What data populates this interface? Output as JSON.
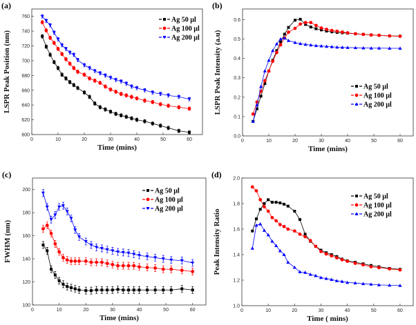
{
  "colors": {
    "s50": "#000000",
    "s100": "#ff0000",
    "s200": "#0000ff"
  },
  "chart_data": [
    {
      "panel": "(a)",
      "type": "line",
      "xlabel": "Time (mins)",
      "ylabel": "LSPR Peak Position (nm)",
      "xlim": [
        0,
        65
      ],
      "ylim": [
        600,
        770
      ],
      "xticks": [
        0,
        10,
        20,
        30,
        40,
        50,
        60
      ],
      "yticks": [
        600,
        620,
        640,
        660,
        680,
        700,
        720,
        740,
        760
      ],
      "legend": "top-right",
      "error_bars": true,
      "x": [
        4,
        5.5,
        7,
        8.5,
        10,
        11.5,
        13,
        14.5,
        16,
        17.5,
        20,
        22,
        24,
        26,
        28,
        30,
        32,
        34,
        36,
        38,
        40,
        43,
        46,
        49,
        52,
        56,
        60
      ],
      "series": [
        {
          "name": "Ag  50 µl",
          "marker": "square",
          "values": [
            733,
            719,
            708,
            698,
            690,
            681,
            676,
            671,
            667,
            663,
            657,
            651,
            642,
            637,
            634,
            631,
            628,
            626,
            624,
            622,
            620,
            618,
            615,
            612,
            609,
            605,
            603
          ]
        },
        {
          "name": "Ag 100 µl",
          "marker": "circle",
          "values": [
            752,
            741,
            731,
            724,
            716,
            709,
            702,
            696,
            690,
            685,
            681,
            676,
            673,
            670,
            665,
            661,
            658,
            655,
            653,
            651,
            649,
            646,
            644,
            641,
            639,
            637,
            635
          ]
        },
        {
          "name": "Ag 200 µl",
          "marker": "triangle-down",
          "values": [
            760,
            754,
            748,
            738,
            729,
            721,
            716,
            711,
            708,
            701,
            694,
            690,
            686,
            683,
            680,
            677,
            674,
            672,
            669,
            665,
            663,
            660,
            657,
            655,
            653,
            651,
            648
          ]
        }
      ]
    },
    {
      "panel": "(b)",
      "type": "line",
      "xlabel": "Time (mins)",
      "ylabel": "LSPR Peak Intensity (a.u)",
      "xlim": [
        0,
        65
      ],
      "ylim": [
        0,
        0.655
      ],
      "xticks": [
        0,
        10,
        20,
        30,
        40,
        50,
        60
      ],
      "yticks": [
        0.0,
        0.1,
        0.2,
        0.3,
        0.4,
        0.5,
        0.6
      ],
      "legend": "center-right",
      "error_bars": false,
      "x": [
        4,
        5.5,
        7,
        8.5,
        10,
        11.5,
        13,
        14.5,
        16,
        17.5,
        20,
        22,
        24,
        26,
        28,
        30,
        32,
        34,
        36,
        38,
        40,
        43,
        46,
        49,
        52,
        56,
        60
      ],
      "series": [
        {
          "name": "Ag  50 µl",
          "marker": "square",
          "values": [
            0.075,
            0.14,
            0.205,
            0.27,
            0.335,
            0.39,
            0.44,
            0.485,
            0.525,
            0.56,
            0.597,
            0.602,
            0.575,
            0.562,
            0.553,
            0.547,
            0.541,
            0.537,
            0.534,
            0.532,
            0.53,
            0.527,
            0.524,
            0.521,
            0.519,
            0.516,
            0.515
          ]
        },
        {
          "name": "Ag 100 µl",
          "marker": "circle",
          "values": [
            0.113,
            0.175,
            0.23,
            0.285,
            0.335,
            0.385,
            0.43,
            0.47,
            0.505,
            0.535,
            0.555,
            0.577,
            0.585,
            0.585,
            0.57,
            0.557,
            0.55,
            0.544,
            0.54,
            0.536,
            0.532,
            0.527,
            0.524,
            0.521,
            0.519,
            0.516,
            0.514
          ]
        },
        {
          "name": "Ag 200 µl",
          "marker": "triangle-up",
          "values": [
            0.075,
            0.16,
            0.255,
            0.335,
            0.39,
            0.44,
            0.475,
            0.5,
            0.505,
            0.492,
            0.482,
            0.476,
            0.472,
            0.469,
            0.466,
            0.464,
            0.462,
            0.46,
            0.458,
            0.457,
            0.456,
            0.455,
            0.454,
            0.453,
            0.453,
            0.452,
            0.452
          ]
        }
      ]
    },
    {
      "panel": "(c)",
      "type": "line",
      "xlabel": "Time (mins)",
      "ylabel": "FWHM (nm)",
      "xlim": [
        0,
        65
      ],
      "ylim": [
        100,
        210
      ],
      "xticks": [
        0,
        10,
        20,
        30,
        40,
        50,
        60
      ],
      "yticks": [
        100,
        120,
        140,
        160,
        180,
        200
      ],
      "legend": "top-right",
      "error_bars": true,
      "x": [
        4,
        5.5,
        7,
        8.5,
        10,
        11.5,
        13,
        14.5,
        16,
        17.5,
        20,
        22,
        24,
        26,
        28,
        30,
        32,
        34,
        36,
        38,
        40,
        43,
        46,
        49,
        52,
        56,
        60
      ],
      "series": [
        {
          "name": "Ag  50 µl",
          "marker": "square",
          "values": [
            152,
            147,
            131,
            126,
            121,
            118,
            116,
            115,
            114,
            113,
            112.5,
            112.5,
            113,
            113,
            113,
            113,
            113.5,
            113,
            113,
            113,
            113,
            113,
            113,
            113,
            113,
            114,
            113
          ]
        },
        {
          "name": "Ag 100 µl",
          "marker": "circle",
          "values": [
            166,
            169,
            162,
            153,
            146,
            141,
            139,
            138,
            138,
            138,
            138,
            137,
            137,
            137,
            136,
            135,
            134,
            134,
            134,
            134,
            133,
            132.5,
            132,
            131,
            131,
            130,
            129
          ]
        },
        {
          "name": "Ag 200 µl",
          "marker": "triangle-down",
          "values": [
            197,
            185,
            174,
            178,
            185,
            186,
            181,
            175,
            165,
            159,
            155,
            152,
            150,
            149,
            148,
            147,
            146,
            145.5,
            145,
            144,
            143,
            142,
            141,
            140,
            139,
            138.5,
            136.5
          ]
        }
      ]
    },
    {
      "panel": "(d)",
      "type": "line",
      "xlabel": "Time ( mins)",
      "ylabel": "Peak Intensity Ratio",
      "xlim": [
        0,
        65
      ],
      "ylim": [
        1.0,
        2.0
      ],
      "xticks": [
        0,
        10,
        20,
        30,
        40,
        50,
        60
      ],
      "yticks": [
        1.0,
        1.2,
        1.4,
        1.6,
        1.8,
        2.0
      ],
      "legend": "top-right",
      "error_bars": false,
      "x": [
        4,
        5.5,
        7,
        8.5,
        10,
        11.5,
        13,
        14.5,
        16,
        17.5,
        20,
        22,
        24,
        26,
        28,
        30,
        32,
        34,
        36,
        38,
        40,
        43,
        46,
        49,
        52,
        56,
        60
      ],
      "series": [
        {
          "name": "Ag  50 µl",
          "marker": "square",
          "values": [
            1.585,
            1.68,
            1.755,
            1.8,
            1.83,
            1.81,
            1.81,
            1.805,
            1.795,
            1.78,
            1.74,
            1.675,
            1.56,
            1.505,
            1.465,
            1.435,
            1.415,
            1.4,
            1.385,
            1.365,
            1.352,
            1.34,
            1.328,
            1.315,
            1.305,
            1.292,
            1.285
          ]
        },
        {
          "name": "Ag 100 µl",
          "marker": "circle",
          "values": [
            1.93,
            1.9,
            1.83,
            1.775,
            1.74,
            1.69,
            1.665,
            1.635,
            1.62,
            1.6,
            1.585,
            1.56,
            1.54,
            1.51,
            1.465,
            1.425,
            1.405,
            1.39,
            1.375,
            1.36,
            1.348,
            1.332,
            1.32,
            1.305,
            1.298,
            1.288,
            1.28
          ]
        },
        {
          "name": "Ag 200 µl",
          "marker": "triangle-up",
          "values": [
            1.45,
            1.63,
            1.64,
            1.59,
            1.555,
            1.505,
            1.47,
            1.43,
            1.4,
            1.34,
            1.3,
            1.265,
            1.26,
            1.245,
            1.235,
            1.22,
            1.213,
            1.205,
            1.195,
            1.19,
            1.182,
            1.178,
            1.172,
            1.168,
            1.163,
            1.16,
            1.158
          ]
        }
      ]
    }
  ]
}
